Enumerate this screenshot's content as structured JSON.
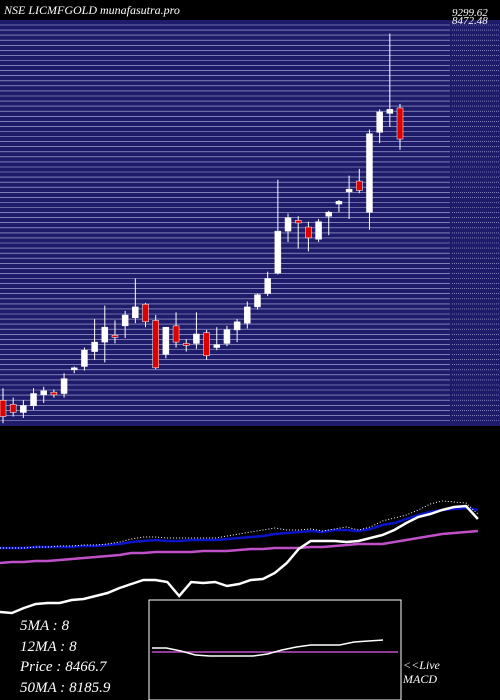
{
  "header": {
    "title": "NSE LICMFGOLD munafasutra.pro",
    "top_price_label": "9299.62",
    "top_price_label_2": "8472.48"
  },
  "info": {
    "ma5_label": "5MA :",
    "ma5_value": "8",
    "ma12_label": "12MA :",
    "ma12_value": "8",
    "price_label": "Price :",
    "price_value": "8466.7",
    "ma50_label": "50MA :",
    "ma50_value": "8185.9"
  },
  "macd": {
    "label_line1": "<<Live",
    "label_line2": "MACD"
  },
  "colors": {
    "background": "#000000",
    "price_panel": "#1e1b6b",
    "grid_line": "#b8b8e0",
    "up_candle": "#ffffff",
    "down_candle": "#dd0000",
    "wick": "#ffffff",
    "ma_blue": "#0a14c8",
    "ma_pink": "#c050c8",
    "macd_line": "#ffffff",
    "signal_line": "#c050c8"
  },
  "chart_data": {
    "type": "candlestick",
    "title": "NSE LICMFGOLD munafasutra.pro",
    "ylim": [
      6350,
      9350
    ],
    "candles": [
      {
        "o": 6540,
        "h": 6630,
        "l": 6370,
        "c": 6420
      },
      {
        "o": 6510,
        "h": 6560,
        "l": 6420,
        "c": 6450
      },
      {
        "o": 6450,
        "h": 6540,
        "l": 6410,
        "c": 6500
      },
      {
        "o": 6500,
        "h": 6630,
        "l": 6470,
        "c": 6590
      },
      {
        "o": 6580,
        "h": 6640,
        "l": 6520,
        "c": 6610
      },
      {
        "o": 6600,
        "h": 6620,
        "l": 6560,
        "c": 6580
      },
      {
        "o": 6590,
        "h": 6740,
        "l": 6560,
        "c": 6700
      },
      {
        "o": 6770,
        "h": 6790,
        "l": 6740,
        "c": 6780
      },
      {
        "o": 6790,
        "h": 6930,
        "l": 6760,
        "c": 6910
      },
      {
        "o": 6900,
        "h": 7140,
        "l": 6840,
        "c": 6970
      },
      {
        "o": 6970,
        "h": 7240,
        "l": 6820,
        "c": 7080
      },
      {
        "o": 7020,
        "h": 7130,
        "l": 6960,
        "c": 7010
      },
      {
        "o": 7090,
        "h": 7200,
        "l": 7000,
        "c": 7170
      },
      {
        "o": 7150,
        "h": 7440,
        "l": 7110,
        "c": 7230
      },
      {
        "o": 7250,
        "h": 7260,
        "l": 7080,
        "c": 7120
      },
      {
        "o": 7130,
        "h": 7170,
        "l": 6770,
        "c": 6780
      },
      {
        "o": 6880,
        "h": 7080,
        "l": 6850,
        "c": 7080
      },
      {
        "o": 7090,
        "h": 7190,
        "l": 6930,
        "c": 6970
      },
      {
        "o": 6960,
        "h": 6990,
        "l": 6900,
        "c": 6950
      },
      {
        "o": 6960,
        "h": 7190,
        "l": 6920,
        "c": 7030
      },
      {
        "o": 7040,
        "h": 7060,
        "l": 6840,
        "c": 6870
      },
      {
        "o": 6930,
        "h": 7080,
        "l": 6910,
        "c": 6950
      },
      {
        "o": 6960,
        "h": 7090,
        "l": 6940,
        "c": 7060
      },
      {
        "o": 7060,
        "h": 7140,
        "l": 6970,
        "c": 7120
      },
      {
        "o": 7110,
        "h": 7270,
        "l": 7070,
        "c": 7230
      },
      {
        "o": 7230,
        "h": 7330,
        "l": 7210,
        "c": 7320
      },
      {
        "o": 7330,
        "h": 7490,
        "l": 7310,
        "c": 7440
      },
      {
        "o": 7480,
        "h": 8170,
        "l": 7470,
        "c": 7790
      },
      {
        "o": 7790,
        "h": 7920,
        "l": 7710,
        "c": 7890
      },
      {
        "o": 7870,
        "h": 7900,
        "l": 7660,
        "c": 7850
      },
      {
        "o": 7820,
        "h": 7860,
        "l": 7640,
        "c": 7740
      },
      {
        "o": 7730,
        "h": 7880,
        "l": 7710,
        "c": 7860
      },
      {
        "o": 7900,
        "h": 7940,
        "l": 7760,
        "c": 7930
      },
      {
        "o": 7990,
        "h": 8020,
        "l": 7930,
        "c": 8010
      },
      {
        "o": 8080,
        "h": 8200,
        "l": 7880,
        "c": 8100
      },
      {
        "o": 8160,
        "h": 8250,
        "l": 8070,
        "c": 8090
      },
      {
        "o": 7930,
        "h": 8540,
        "l": 7800,
        "c": 8510
      },
      {
        "o": 8520,
        "h": 8690,
        "l": 8440,
        "c": 8670
      },
      {
        "o": 8660,
        "h": 9250,
        "l": 8560,
        "c": 8690
      },
      {
        "o": 8700,
        "h": 8730,
        "l": 8390,
        "c": 8470
      }
    ],
    "indicators": {
      "ma_blue": [
        548,
        548,
        548,
        547,
        547,
        547,
        547,
        546,
        546,
        545,
        544,
        542,
        541,
        540,
        541,
        541,
        540,
        540,
        540,
        539,
        538,
        537,
        536,
        534,
        533,
        532,
        531,
        532,
        530,
        530,
        531,
        529,
        525,
        523,
        519,
        515,
        512,
        510,
        509,
        508,
        510
      ],
      "ma_blue_dotted": [
        548,
        548,
        548,
        547,
        547,
        546,
        546,
        545,
        545,
        544,
        542,
        539,
        537,
        537,
        538,
        538,
        538,
        538,
        538,
        536,
        534,
        532,
        530,
        528,
        530,
        530,
        529,
        531,
        529,
        527,
        530,
        527,
        521,
        518,
        515,
        510,
        504,
        501,
        502,
        503,
        514
      ],
      "ma_pink": [
        563,
        562,
        562,
        561,
        561,
        560,
        559,
        558,
        557,
        556,
        555,
        553,
        553,
        552,
        552,
        552,
        552,
        551,
        551,
        551,
        550,
        549,
        549,
        548,
        548,
        548,
        547,
        547,
        546,
        545,
        544,
        544,
        544,
        542,
        540,
        538,
        536,
        534,
        533,
        532,
        531
      ],
      "macd_panel_line": [
        612,
        613,
        608,
        604,
        603,
        603,
        600,
        599,
        596,
        593,
        588,
        584,
        580,
        580,
        582,
        596,
        582,
        583,
        582,
        586,
        584,
        580,
        579,
        573,
        563,
        549,
        541,
        541,
        541,
        542,
        541,
        538,
        535,
        530,
        523,
        517,
        514,
        510,
        507,
        506,
        519
      ]
    },
    "macd": {
      "macd_line": [
        648,
        648,
        651,
        655,
        656,
        656,
        656,
        656,
        654,
        650,
        647,
        645,
        645,
        645,
        642,
        641,
        640
      ],
      "signal_line": [
        652,
        652,
        652,
        652,
        652,
        652,
        652,
        652,
        652,
        652,
        652,
        652,
        652,
        652,
        652,
        652,
        652
      ]
    }
  }
}
